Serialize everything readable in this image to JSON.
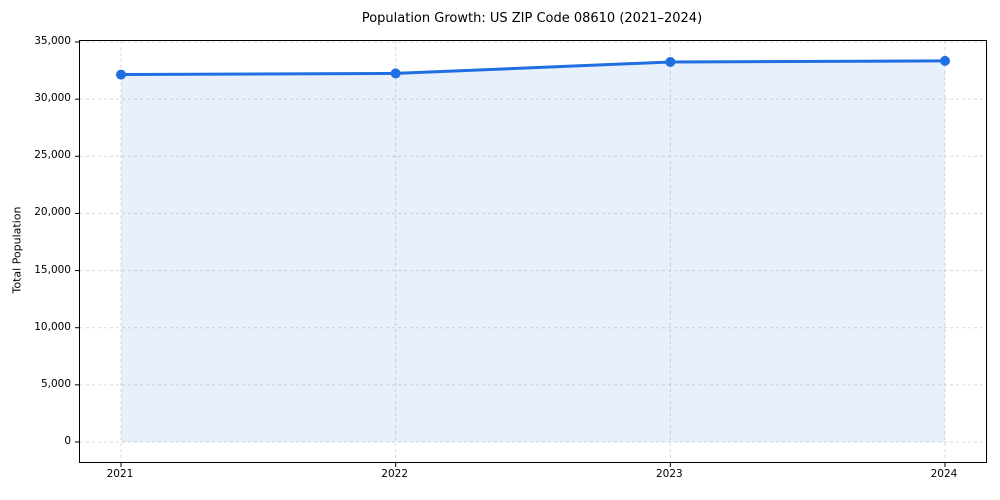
{
  "chart_data": {
    "type": "area",
    "title": "Population Growth: US ZIP Code 08610 (2021–2024)",
    "xlabel": "",
    "ylabel": "Total Population",
    "categories": [
      "2021",
      "2022",
      "2023",
      "2024"
    ],
    "series": [
      {
        "name": "Total Population",
        "values": [
          32150,
          32250,
          33250,
          33350
        ]
      }
    ],
    "ylim": [
      0,
      35000
    ],
    "yticks": [
      0,
      5000,
      10000,
      15000,
      20000,
      25000,
      30000,
      35000
    ],
    "grid": true,
    "grid_style": "dashed",
    "legend_position": "none",
    "colors": {
      "line": "#1f6fe0",
      "marker": "#1f6fe0",
      "fill": "#1f6fe0",
      "fill_opacity": 0.1,
      "grid": "#d9d9d9",
      "spine": "#000000",
      "tick_text": "#000000"
    }
  }
}
